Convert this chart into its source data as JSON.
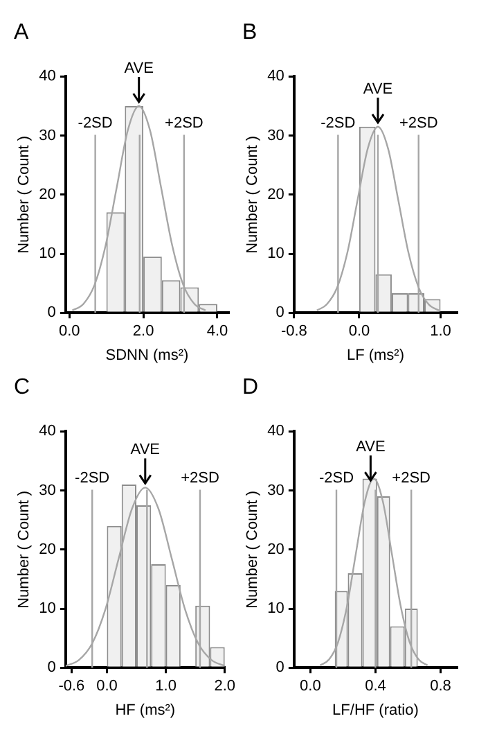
{
  "chart_data": [
    {
      "type": "histogram",
      "title": "A",
      "xlabel": "SDNN (ms²)",
      "ylabel": "Number ( Count )",
      "color": "#f0f0f0",
      "bins": [
        1.0,
        1.5,
        2.0,
        2.5,
        3.0,
        3.5,
        4.0
      ],
      "values": [
        17,
        35,
        9.5,
        5.5,
        4.3,
        1.5
      ],
      "xlim": [
        -0.1,
        4.3
      ],
      "xticks": [
        {
          "value": 0,
          "label": "0.0"
        },
        {
          "value": 2,
          "label": "2.0"
        },
        {
          "value": 4,
          "label": "4.0"
        }
      ],
      "ylim": [
        0,
        40
      ],
      "yticks": [
        0,
        10,
        20,
        30,
        40
      ],
      "marker": "none",
      "series": [
        {
          "type": "line",
          "color": "#a6a6a6",
          "x": [
            0.08,
            0.38,
            0.68,
            0.98,
            1.28,
            1.58,
            1.88,
            2.18,
            2.48,
            2.78,
            3.08,
            3.38,
            3.68
          ],
          "values": [
            0.4,
            1.5,
            4.7,
            11.4,
            21.2,
            30.9,
            35,
            30.9,
            21.2,
            11.4,
            4.7,
            1.5,
            0.4
          ]
        }
      ],
      "ref_lines": [
        {
          "axis": "x",
          "value": 0.7,
          "label": "-2SD",
          "color": "#a6a6a6"
        },
        {
          "axis": "x",
          "value": 1.9,
          "color": "#a6a6a6"
        },
        {
          "axis": "x",
          "value": 3.1,
          "label": "+2SD",
          "color": "#a6a6a6"
        }
      ],
      "annotations": [
        {
          "text": "AVE",
          "x": 1.88,
          "y": 35
        }
      ]
    },
    {
      "type": "histogram",
      "title": "B",
      "xlabel": "LF (ms²)",
      "ylabel": "Number ( Count )",
      "color": "#f0f0f0",
      "bins": [
        0.0,
        0.2,
        0.4,
        0.6,
        0.8,
        1.0
      ],
      "values": [
        31.5,
        6.5,
        3.3,
        3.3,
        2.3
      ],
      "xlim": [
        -0.8,
        1.2
      ],
      "xticks": [
        {
          "value": -0.8,
          "label": "-0.8"
        },
        {
          "value": 0,
          "label": "0.0"
        },
        {
          "value": 1,
          "label": "1.0"
        }
      ],
      "ylim": [
        0,
        40
      ],
      "yticks": [
        0,
        10,
        20,
        30,
        40
      ],
      "marker": "none",
      "series": [
        {
          "type": "line",
          "color": "#a6a6a6",
          "x": [
            -0.52,
            -0.4,
            -0.27,
            -0.145,
            -0.02,
            0.105,
            0.23,
            0.355,
            0.48,
            0.605,
            0.73,
            0.855,
            0.98
          ],
          "values": [
            0.4,
            1.4,
            4.3,
            10.2,
            19.1,
            27.8,
            31.5,
            27.8,
            19.1,
            10.2,
            4.3,
            1.4,
            0.4
          ]
        }
      ],
      "ref_lines": [
        {
          "axis": "x",
          "value": -0.26,
          "label": "-2SD",
          "color": "#a6a6a6"
        },
        {
          "axis": "x",
          "value": 0.23,
          "color": "#a6a6a6"
        },
        {
          "axis": "x",
          "value": 0.73,
          "label": "+2SD",
          "color": "#a6a6a6"
        }
      ],
      "annotations": [
        {
          "text": "AVE",
          "x": 0.23,
          "y": 31.5
        }
      ]
    },
    {
      "type": "histogram",
      "title": "C",
      "xlabel": "HF (ms²)",
      "ylabel": "Number ( Count )",
      "color": "#f0f0f0",
      "bins": [
        0.0,
        0.25,
        0.5,
        0.75,
        1.0,
        1.25,
        1.5,
        1.75,
        2.0
      ],
      "values": [
        24,
        31,
        27.5,
        17.5,
        14,
        0,
        10.5,
        3.5
      ],
      "xlim": [
        -0.7,
        2.0
      ],
      "xticks": [
        {
          "value": -0.6,
          "label": "-0.6"
        },
        {
          "value": 0,
          "label": "0.0"
        },
        {
          "value": 1,
          "label": "1.0"
        },
        {
          "value": 2,
          "label": "2.0"
        }
      ],
      "ylim": [
        0,
        40
      ],
      "yticks": [
        0,
        10,
        20,
        30,
        40
      ],
      "marker": "none",
      "series": [
        {
          "type": "line",
          "color": "#a6a6a6",
          "x": [
            -0.7,
            -0.475,
            -0.25,
            -0.025,
            0.2,
            0.425,
            0.65,
            0.875,
            1.1,
            1.325,
            1.55,
            1.775,
            2.0
          ],
          "values": [
            0.3,
            1.3,
            4.1,
            9.9,
            18.5,
            26.9,
            30.5,
            26.9,
            18.5,
            9.9,
            4.1,
            1.3,
            0.3
          ]
        }
      ],
      "ref_lines": [
        {
          "axis": "x",
          "value": -0.25,
          "label": "-2SD",
          "color": "#a6a6a6"
        },
        {
          "axis": "x",
          "value": 0.68,
          "color": "#a6a6a6"
        },
        {
          "axis": "x",
          "value": 1.58,
          "label": "+2SD",
          "color": "#a6a6a6"
        }
      ],
      "annotations": [
        {
          "text": "AVE",
          "x": 0.65,
          "y": 30.5
        }
      ]
    },
    {
      "type": "histogram",
      "title": "D",
      "xlabel": "LF/HF (ratio)",
      "ylabel": "Number ( Count )",
      "color": "#f0f0f0",
      "bins": [
        0.15,
        0.23,
        0.32,
        0.41,
        0.49,
        0.58,
        0.66
      ],
      "values": [
        13,
        16,
        32,
        29,
        7,
        10
      ],
      "xlim": [
        -0.1,
        0.9
      ],
      "xticks": [
        {
          "value": 0,
          "label": "0.0"
        },
        {
          "value": 0.4,
          "label": "0.4"
        },
        {
          "value": 0.8,
          "label": "0.8"
        }
      ],
      "ylim": [
        0,
        40
      ],
      "yticks": [
        0,
        10,
        20,
        30,
        40
      ],
      "marker": "none",
      "series": [
        {
          "type": "line",
          "color": "#a6a6a6",
          "x": [
            0.06,
            0.115,
            0.17,
            0.225,
            0.28,
            0.335,
            0.39,
            0.445,
            0.5,
            0.555,
            0.61,
            0.665,
            0.72
          ],
          "values": [
            0.4,
            1.4,
            4.3,
            10.4,
            19.4,
            28.2,
            32,
            28.2,
            19.4,
            10.4,
            4.3,
            1.4,
            0.4
          ]
        }
      ],
      "ref_lines": [
        {
          "axis": "x",
          "value": 0.16,
          "label": "-2SD",
          "color": "#a6a6a6"
        },
        {
          "axis": "x",
          "value": 0.4,
          "color": "#a6a6a6"
        },
        {
          "axis": "x",
          "value": 0.62,
          "label": "+2SD",
          "color": "#a6a6a6"
        }
      ],
      "annotations": [
        {
          "text": "AVE",
          "x": 0.37,
          "y": 31
        }
      ]
    }
  ]
}
